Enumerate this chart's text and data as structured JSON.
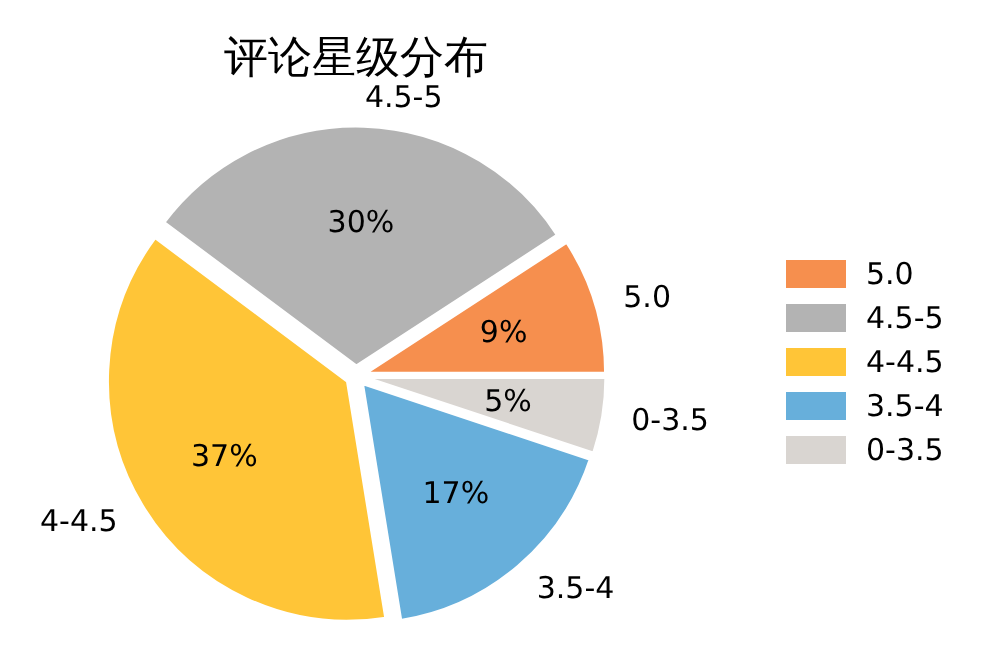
{
  "chart_data": {
    "type": "pie",
    "title": "评论星级分布",
    "categories": [
      "5.0",
      "4.5-5",
      "4-4.5",
      "3.5-4",
      "0-3.5"
    ],
    "values": [
      9,
      30,
      37,
      17,
      5
    ],
    "colors": [
      "#f68f4e",
      "#b3b3b3",
      "#ffc537",
      "#67afdb",
      "#d9d5d1"
    ],
    "value_labels": [
      "9%",
      "30%",
      "37%",
      "17%",
      "5%"
    ],
    "legend": "right"
  }
}
